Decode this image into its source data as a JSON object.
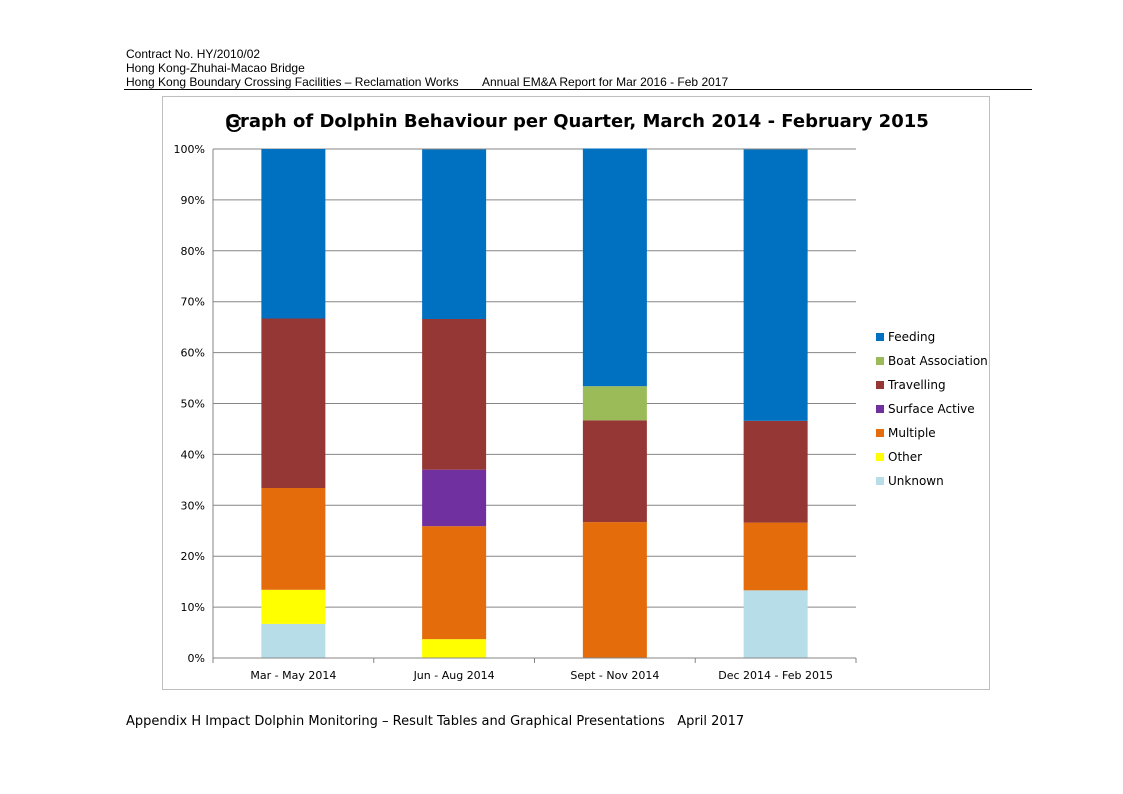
{
  "header": {
    "contract": "Contract No. HY/2010/02",
    "project": "Hong Kong-Zhuhai-Macao Bridge",
    "works": "Hong Kong Boundary Crossing Facilities – Reclamation Works",
    "report": "Annual EM&A Report for Mar 2016 - Feb 2017"
  },
  "chart_label": "C",
  "footer": {
    "text": "Appendix H Impact Dolphin Monitoring – Result Tables and Graphical Presentations",
    "date": "April 2017"
  },
  "chart_data": {
    "type": "bar",
    "stacked": "percent",
    "title": "Graph of Dolphin Behaviour per Quarter, March 2014 - February 2015",
    "categories": [
      "Mar - May 2014",
      "Jun - Aug 2014",
      "Sept - Nov 2014",
      "Dec 2014 - Feb 2015"
    ],
    "ylim": [
      0,
      100
    ],
    "yticks": [
      "0%",
      "10%",
      "20%",
      "30%",
      "40%",
      "50%",
      "60%",
      "70%",
      "80%",
      "90%",
      "100%"
    ],
    "grid": true,
    "legend_position": "right",
    "series": [
      {
        "name": "Unknown",
        "color": "#b7dde8",
        "values": [
          6.7,
          0,
          0,
          13.3
        ]
      },
      {
        "name": "Other",
        "color": "#ffff00",
        "values": [
          6.7,
          3.7,
          0,
          0
        ]
      },
      {
        "name": "Multiple",
        "color": "#e46c0a",
        "values": [
          20.0,
          22.2,
          26.7,
          13.3
        ]
      },
      {
        "name": "Surface Active",
        "color": "#7030a0",
        "values": [
          0,
          11.1,
          0,
          0
        ]
      },
      {
        "name": "Travelling",
        "color": "#953735",
        "values": [
          33.3,
          29.6,
          20.0,
          20.0
        ]
      },
      {
        "name": "Boat Association",
        "color": "#9bbb59",
        "values": [
          0,
          0,
          6.7,
          0
        ]
      },
      {
        "name": "Feeding",
        "color": "#0070c0",
        "values": [
          33.3,
          33.3,
          46.7,
          53.3
        ]
      }
    ],
    "legend_order": [
      "Feeding",
      "Boat Association",
      "Travelling",
      "Surface Active",
      "Multiple",
      "Other",
      "Unknown"
    ]
  }
}
